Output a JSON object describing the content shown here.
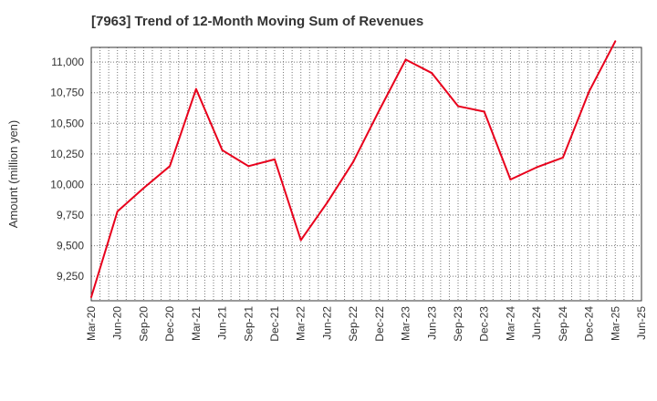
{
  "chart_data": {
    "type": "line",
    "title": "[7963]  Trend of 12-Month Moving Sum of Revenues",
    "xlabel": "",
    "ylabel": "Amount (million yen)",
    "x": [
      "Mar-20",
      "Jun-20",
      "Sep-20",
      "Dec-20",
      "Mar-21",
      "Jun-21",
      "Sep-21",
      "Dec-21",
      "Mar-22",
      "Jun-22",
      "Sep-22",
      "Dec-22",
      "Mar-23",
      "Jun-23",
      "Sep-23",
      "Dec-23",
      "Mar-24",
      "Jun-24",
      "Sep-24",
      "Dec-24",
      "Mar-25",
      "Jun-25"
    ],
    "series": [
      {
        "name": "",
        "color": "#e8001c",
        "values": [
          9080,
          9780,
          9970,
          10150,
          10780,
          10280,
          10150,
          10205,
          9545,
          9850,
          10185,
          10610,
          11020,
          10910,
          10640,
          10595,
          10040,
          10140,
          10220,
          10760,
          11170,
          null
        ]
      }
    ],
    "yticks": [
      9250,
      9500,
      9750,
      10000,
      10250,
      10500,
      10750,
      11000
    ],
    "ytick_labels": [
      "9,250",
      "9,500",
      "9,750",
      "10,000",
      "10,250",
      "10,500",
      "10,750",
      "11,000"
    ],
    "ylim": [
      9050,
      11120
    ],
    "grid": true
  }
}
